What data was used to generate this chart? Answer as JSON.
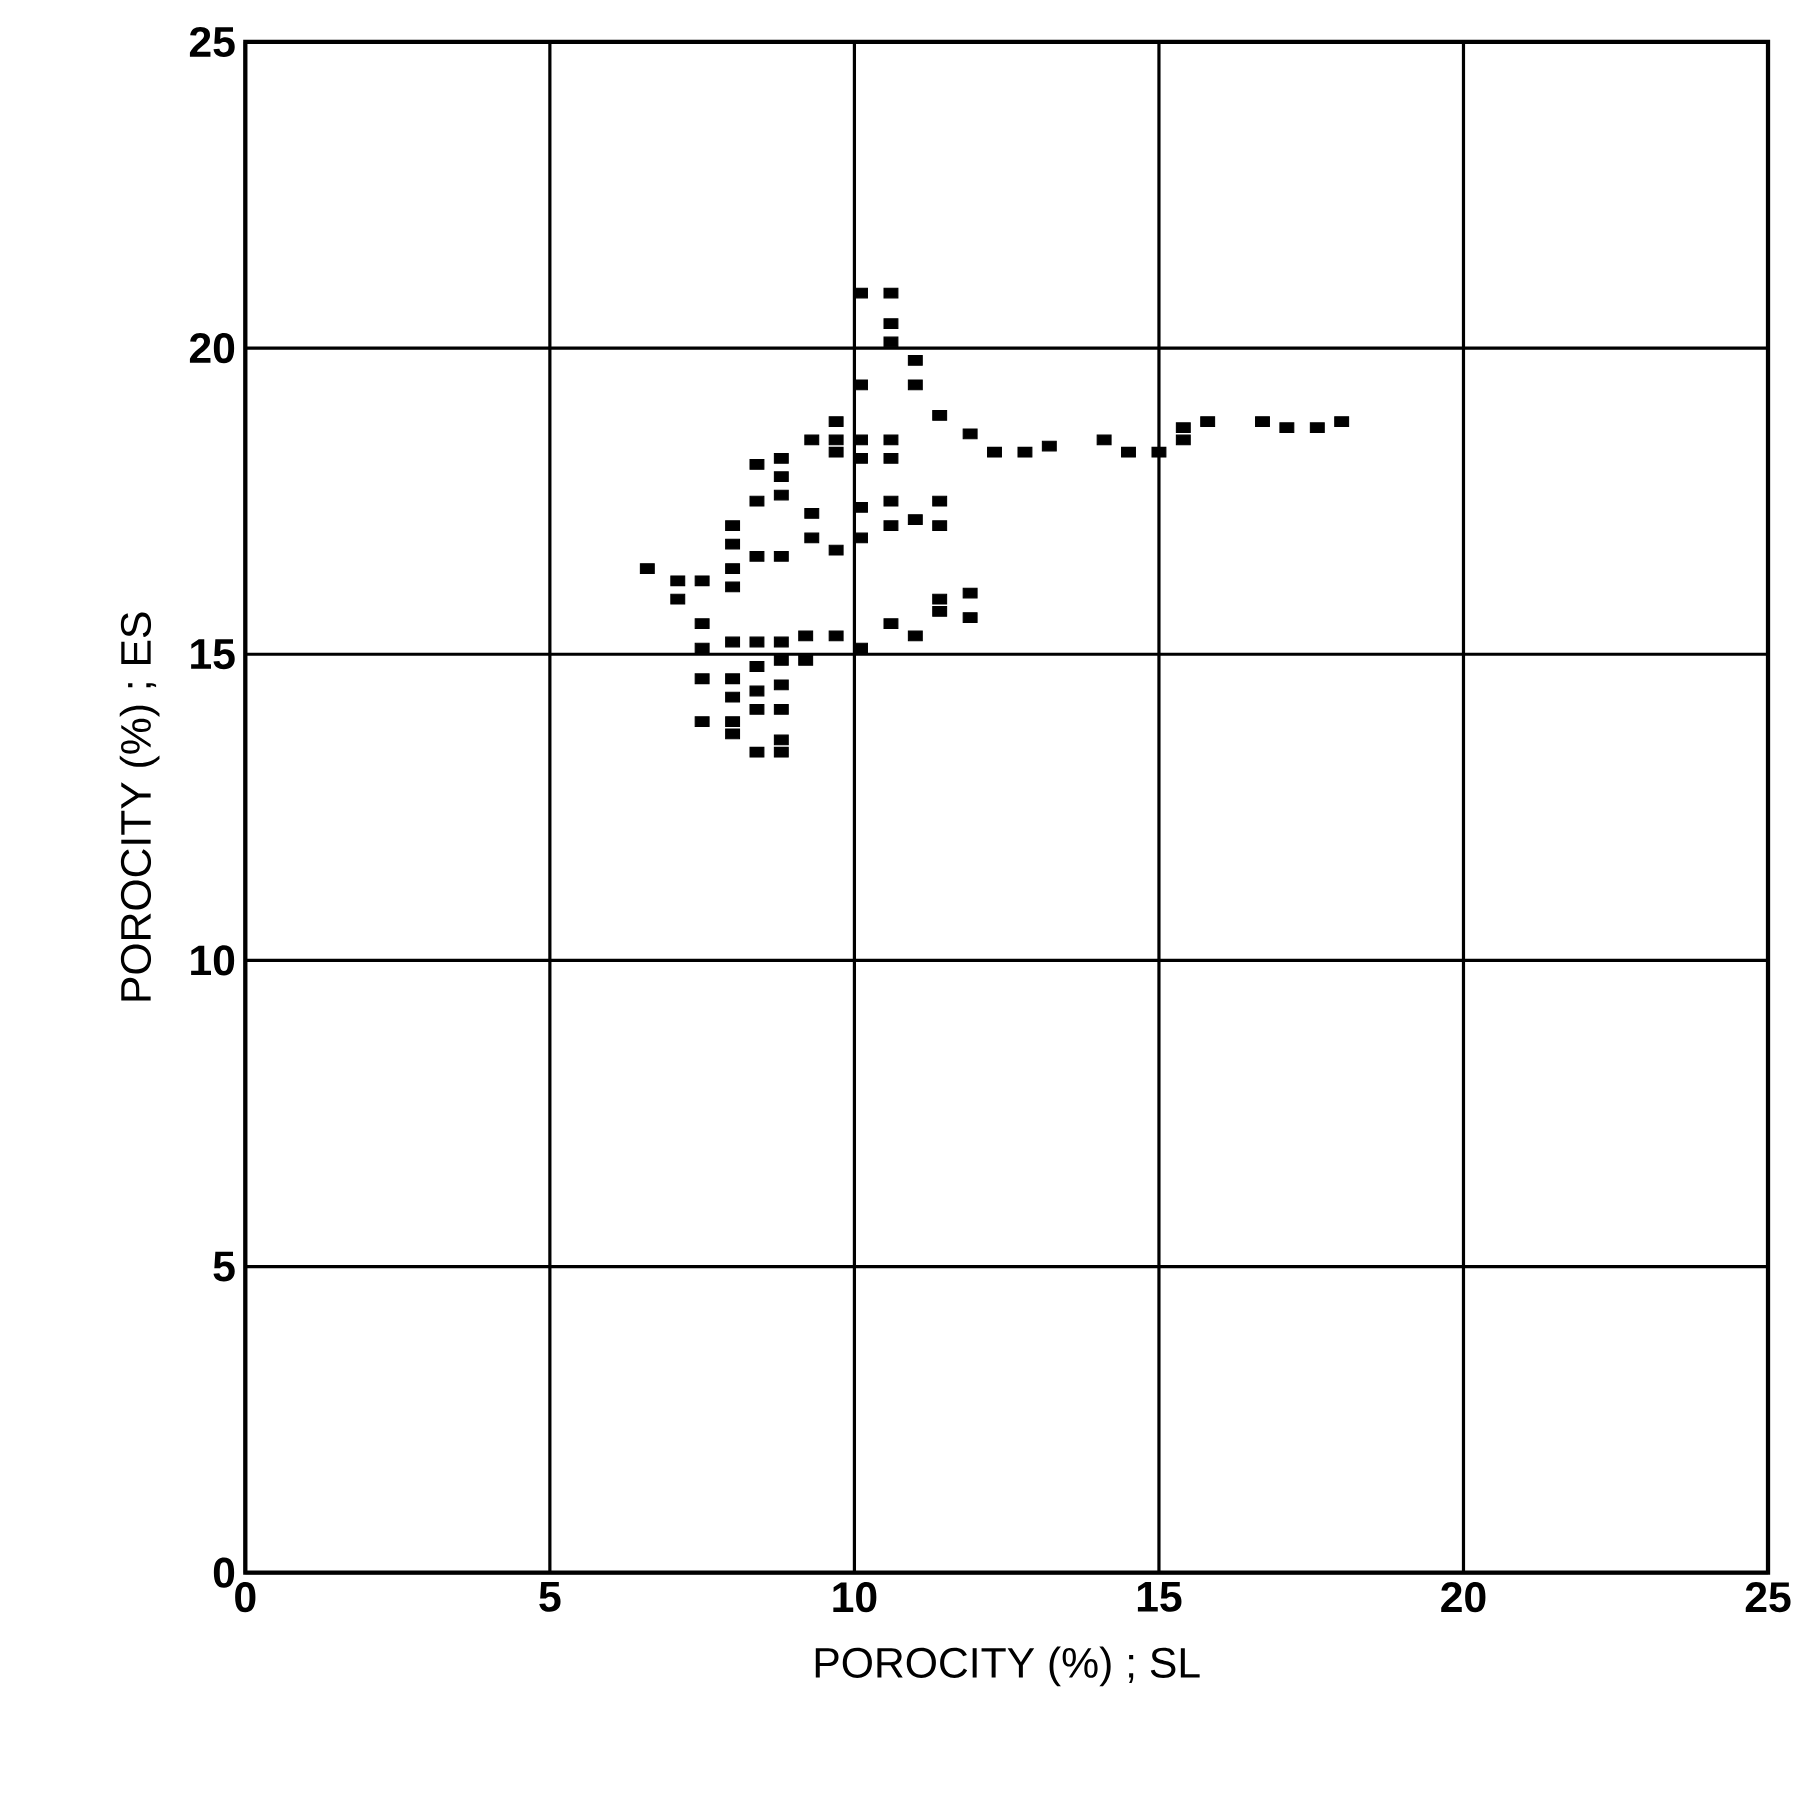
{
  "chart_data": {
    "type": "scatter",
    "xlabel": "POROCITY (%) ; SL",
    "ylabel": "POROCITY (%) ; ES",
    "xlim": [
      0,
      25
    ],
    "ylim": [
      0,
      25
    ],
    "xticks": [
      0,
      5,
      10,
      15,
      20,
      25
    ],
    "yticks": [
      0,
      5,
      10,
      15,
      20,
      25
    ],
    "grid": true,
    "marker": "square",
    "series": [
      {
        "color": "#000000",
        "x": [
          10.1,
          10.6,
          10.6,
          10.6,
          11.0,
          11.0,
          10.1,
          11.4,
          11.9,
          12.3,
          12.8,
          13.2,
          14.1,
          14.5,
          15.0,
          15.4,
          15.4,
          15.8,
          16.7,
          17.1,
          17.6,
          18.0,
          9.7,
          9.7,
          9.7,
          10.1,
          10.1,
          10.6,
          10.6,
          9.3,
          8.8,
          8.8,
          8.4,
          8.8,
          8.4,
          9.3,
          9.3,
          10.1,
          10.6,
          10.6,
          11.0,
          11.4,
          11.4,
          10.1,
          9.7,
          8.8,
          8.4,
          8.0,
          8.0,
          8.0,
          8.0,
          7.5,
          7.1,
          7.1,
          6.6,
          7.5,
          7.5,
          8.0,
          8.4,
          8.4,
          8.4,
          8.4,
          8.4,
          8.0,
          8.0,
          8.0,
          8.0,
          7.5,
          7.5,
          8.8,
          8.8,
          8.8,
          8.8,
          8.8,
          8.8,
          9.2,
          9.2,
          9.7,
          10.1,
          10.6,
          11.0,
          11.4,
          11.4,
          11.9,
          11.9
        ],
        "values": [
          20.9,
          20.9,
          20.4,
          20.1,
          19.8,
          19.4,
          19.4,
          18.9,
          18.6,
          18.3,
          18.3,
          18.4,
          18.5,
          18.3,
          18.3,
          18.7,
          18.5,
          18.8,
          18.8,
          18.7,
          18.7,
          18.8,
          18.8,
          18.5,
          18.3,
          18.5,
          18.2,
          18.5,
          18.2,
          18.5,
          18.2,
          17.9,
          18.1,
          17.6,
          17.5,
          17.3,
          16.9,
          17.4,
          17.5,
          17.1,
          17.2,
          17.5,
          17.1,
          16.9,
          16.7,
          16.6,
          16.6,
          17.1,
          16.8,
          16.4,
          16.1,
          16.2,
          16.2,
          15.9,
          16.4,
          15.5,
          15.1,
          15.2,
          15.2,
          14.8,
          14.4,
          14.1,
          13.4,
          14.6,
          14.3,
          13.9,
          13.7,
          14.6,
          13.9,
          15.2,
          14.9,
          14.5,
          14.1,
          13.6,
          13.4,
          15.3,
          14.9,
          15.3,
          15.1,
          15.5,
          15.3,
          15.9,
          15.7,
          16.0,
          15.6
        ]
      }
    ]
  }
}
